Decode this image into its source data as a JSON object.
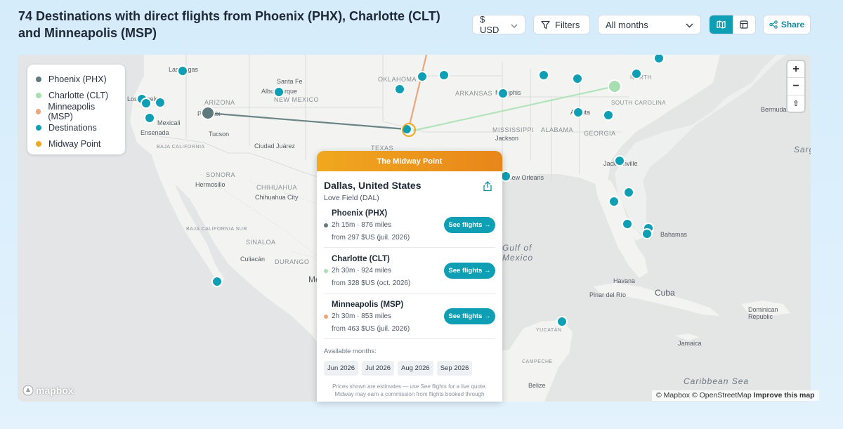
{
  "header": {
    "title": "74 Destinations with direct flights from Phoenix (PHX), Charlotte (CLT) and Minneapolis (MSP)"
  },
  "toolbar": {
    "currency": "$ USD",
    "filters": "Filters",
    "months": "All months",
    "share": "Share"
  },
  "legend": [
    {
      "label": "Phoenix (PHX)",
      "color": "#5f7a7d"
    },
    {
      "label": "Charlotte (CLT)",
      "color": "#a8dfb0"
    },
    {
      "label": "Minneapolis (MSP)",
      "color": "#eda57a"
    },
    {
      "label": "Destinations",
      "color": "#0f9fb4"
    },
    {
      "label": "Midway Point",
      "color": "#f0a81f"
    }
  ],
  "map_labels": {
    "las_vegas": "Las Vegas",
    "santa_fe": "Santa Fe",
    "albuquerque": "Albuquerque",
    "new_mexico": "NEW MEXICO",
    "arizona": "ARIZONA",
    "phoenix": "Phoenix",
    "tucson": "Tucson",
    "los_angeles": "Los Angeles",
    "mexicali": "Mexicali",
    "ensenada": "Ensenada",
    "baja_california": "BAJA CALIFORNIA",
    "ciudad_juarez": "Ciudad Juárez",
    "texas": "TEXAS",
    "oklahoma": "OKLAHOMA",
    "arkansas": "ARKANSAS",
    "memphis": "Memphis",
    "mississippi": "MISSISSIPPI",
    "jackson": "Jackson",
    "alabama": "ALABAMA",
    "atlanta": "Atlanta",
    "georgia": "GEORGIA",
    "south_carolina": "SOUTH CAROLINA",
    "north_carolina": "NORTH",
    "jacksonville": "Jacksonville",
    "new_orleans": "New Orleans",
    "sonora": "SONORA",
    "hermosillo": "Hermosillo",
    "chihuahua": "CHIHUAHUA",
    "chihuahua_city": "Chihuahua City",
    "baja_california_sur": "BAJA CALIFORNIA SUR",
    "sinaloa": "SINALOA",
    "culiacan": "Culiacán",
    "durango": "DURANGO",
    "mexico": "Mexico",
    "gulf_of_mexico": "Gulf of Mexico",
    "bahamas": "Bahamas",
    "havana": "Havana",
    "cuba": "Cuba",
    "pinar_del_rio": "Pinar del Río",
    "yucatan": "YUCATÁN",
    "campeche": "CAMPECHE",
    "belize": "Belize",
    "jamaica": "Jamaica",
    "dominican_republic": "Dominican Republic",
    "caribbean_sea": "Caribbean Sea",
    "bermuda": "Bermuda",
    "sargasso": "Sarg"
  },
  "map_controls": {
    "zoom_in": "+",
    "zoom_out": "−",
    "reset": "⇧"
  },
  "attribution": {
    "mapbox": "© Mapbox",
    "osm": "© OpenStreetMap",
    "improve": "Improve this map",
    "logo": "mapbox"
  },
  "popup": {
    "header": "The Midway Point",
    "city": "Dallas, United States",
    "airport": "Love Field (DAL)",
    "routes": [
      {
        "origin": "Phoenix (PHX)",
        "meta": "2h 15m · 876 miles",
        "price": "from 297 $US (juil. 2026)",
        "button": "See flights →",
        "color": "#5f7a7d"
      },
      {
        "origin": "Charlotte (CLT)",
        "meta": "2h 30m · 924 miles",
        "price": "from 328 $US (oct. 2026)",
        "button": "See flights →",
        "color": "#a8dfb0"
      },
      {
        "origin": "Minneapolis (MSP)",
        "meta": "2h 30m · 853 miles",
        "price": "from 463 $US (juil. 2026)",
        "button": "See flights →",
        "color": "#eda57a"
      }
    ],
    "available_label": "Available months:",
    "months": [
      "Jun 2026",
      "Jul 2026",
      "Aug 2026",
      "Sep 2026"
    ],
    "disclaimer": "Prices shown are estimates — use See flights for a live quote. Midway may earn a commission from flights booked through"
  }
}
